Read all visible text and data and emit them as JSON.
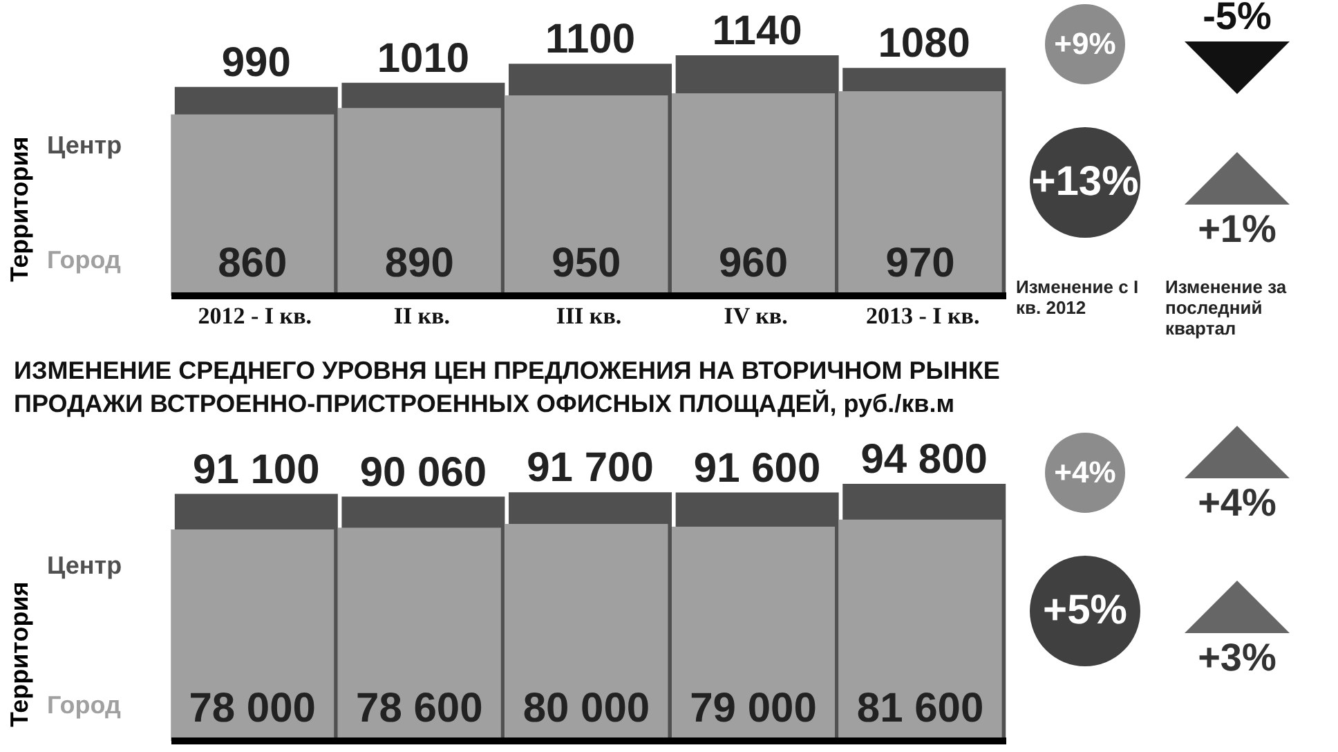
{
  "chart_data": [
    {
      "type": "bar",
      "categories": [
        "2012 - I кв.",
        "II кв.",
        "III кв.",
        "IV кв.",
        "2013 - I кв."
      ],
      "ylabel": "Территория",
      "series": [
        {
          "name": "Центр",
          "color": "#505050",
          "values": [
            990,
            1010,
            1100,
            1140,
            1080
          ],
          "value_labels": [
            "990",
            "1010",
            "1100",
            "1140",
            "1080"
          ]
        },
        {
          "name": "Город",
          "color": "#a0a0a0",
          "values": [
            860,
            890,
            950,
            960,
            970
          ],
          "value_labels": [
            "860",
            "890",
            "950",
            "960",
            "970"
          ]
        }
      ],
      "annotations": [
        "+9%",
        "+13%",
        "-5%",
        "+1%",
        "Изменение с I кв. 2012",
        "Изменение за последний квартал"
      ]
    },
    {
      "type": "bar",
      "title": "ИЗМЕНЕНИЕ СРЕДНЕГО УРОВНЯ ЦЕН ПРЕДЛОЖЕНИЯ НА ВТОРИЧНОМ РЫНКЕ ПРОДАЖИ ВСТРОЕННО-ПРИСТРОЕННЫХ ОФИСНЫХ ПЛОЩАДЕЙ, руб./кв.м",
      "categories": [
        null,
        null,
        null,
        null,
        null
      ],
      "ylabel": "Территория",
      "series": [
        {
          "name": "Центр",
          "color": "#505050",
          "values": [
            91100,
            90060,
            91700,
            91600,
            94800
          ],
          "value_labels": [
            "91 100",
            "90 060",
            "91 700",
            "91 600",
            "94 800"
          ]
        },
        {
          "name": "Город",
          "color": "#a0a0a0",
          "values": [
            78000,
            78600,
            80000,
            79000,
            81600
          ],
          "value_labels": [
            "78 000",
            "78 600",
            "80 000",
            "79 000",
            "81 600"
          ]
        }
      ],
      "annotations": [
        "+4%",
        "+5%",
        "+4%",
        "+3%"
      ]
    }
  ]
}
